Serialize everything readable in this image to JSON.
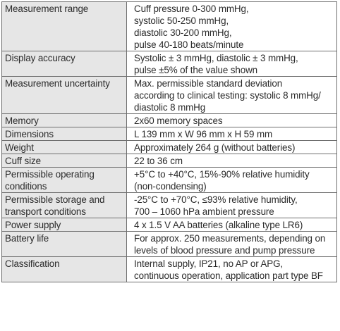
{
  "rows": [
    {
      "label": [
        "Measurement range"
      ],
      "value": [
        "Cuff pressure 0-300 mmHg,",
        "systolic 50-250 mmHg,",
        "diastolic 30-200 mmHg,",
        "pulse 40-180 beats/minute"
      ]
    },
    {
      "label": [
        "Display accuracy"
      ],
      "value": [
        "Systolic ± 3 mmHg, diastolic ± 3 mmHg,",
        "pulse ±5% of the value shown"
      ]
    },
    {
      "label": [
        "Measurement uncertainty"
      ],
      "value": [
        "Max. permissible standard deviation",
        "according to clinical testing: systolic 8 mmHg/",
        "diastolic 8 mmHg"
      ]
    },
    {
      "label": [
        "Memory"
      ],
      "value": [
        "2x60 memory spaces"
      ]
    },
    {
      "label": [
        "Dimensions"
      ],
      "value": [
        "L 139 mm x W 96 mm x H 59 mm"
      ]
    },
    {
      "label": [
        "Weight"
      ],
      "value": [
        "Approximately 264 g (without batteries)"
      ]
    },
    {
      "label": [
        "Cuff size"
      ],
      "value": [
        "22 to 36 cm"
      ]
    },
    {
      "label": [
        "Permissible operating",
        "conditions"
      ],
      "value": [
        "+5°C to +40°C, 15%-90% relative humidity",
        "(non-condensing)"
      ]
    },
    {
      "label": [
        "Permissible storage and",
        "transport conditions"
      ],
      "value": [
        "-25°C to +70°C, ≤93% relative humidity,",
        "700 – 1060 hPa ambient pressure"
      ]
    },
    {
      "label": [
        "Power supply"
      ],
      "value": [
        "4 x 1.5 V AA batteries (alkaline type LR6)"
      ]
    },
    {
      "label": [
        "Battery life"
      ],
      "value": [
        "For approx. 250 measurements, depending on",
        "levels of blood pressure and pump pressure"
      ]
    },
    {
      "label": [
        "Classification"
      ],
      "value": [
        "Internal supply, IP21, no AP or APG,",
        "continuous operation, application part type BF"
      ]
    }
  ]
}
